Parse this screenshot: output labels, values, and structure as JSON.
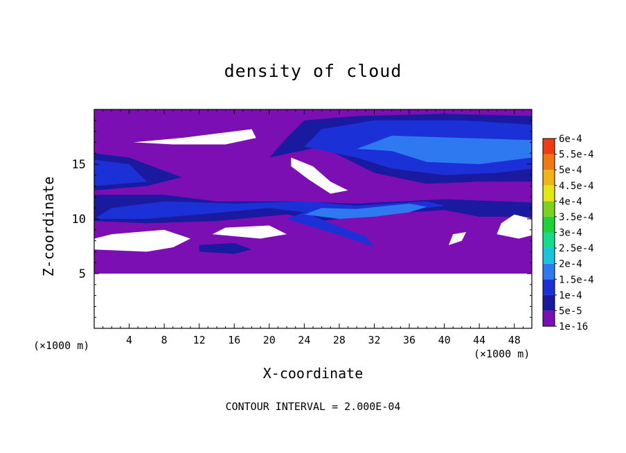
{
  "chart_data": {
    "type": "heatmap",
    "title": "density of cloud",
    "xlabel": "X-coordinate",
    "ylabel": "Z-coordinate",
    "x_unit_label": "(×1000 m)",
    "xlim": [
      0,
      50
    ],
    "ylim": [
      0,
      20
    ],
    "x_ticks": [
      4,
      8,
      12,
      16,
      20,
      24,
      28,
      32,
      36,
      40,
      44,
      48
    ],
    "y_ticks": [
      5,
      10,
      15
    ],
    "colorbar": {
      "levels": [
        "1e-16",
        "5e-5",
        "1e-4",
        "1.5e-4",
        "2e-4",
        "2.5e-4",
        "3e-4",
        "3.5e-4",
        "4e-4",
        "4.5e-4",
        "5e-4",
        "5.5e-4",
        "6e-4"
      ],
      "colors": [
        "#7c0fb4",
        "#1a1aa0",
        "#1c30d8",
        "#2e78f0",
        "#18c4dc",
        "#14dc8c",
        "#1ed23c",
        "#7ad21e",
        "#e6e614",
        "#f0b414",
        "#f07814",
        "#f03c14",
        "#ff8c8c"
      ]
    },
    "data_description_levels": {
      "cloud_free": "white",
      "base_level": "1e-16",
      "light": "5e-5",
      "medium": "1e-4",
      "dense": "1.5e-4"
    },
    "contour_interval_text": "CONTOUR INTERVAL = 2.000E-04"
  }
}
